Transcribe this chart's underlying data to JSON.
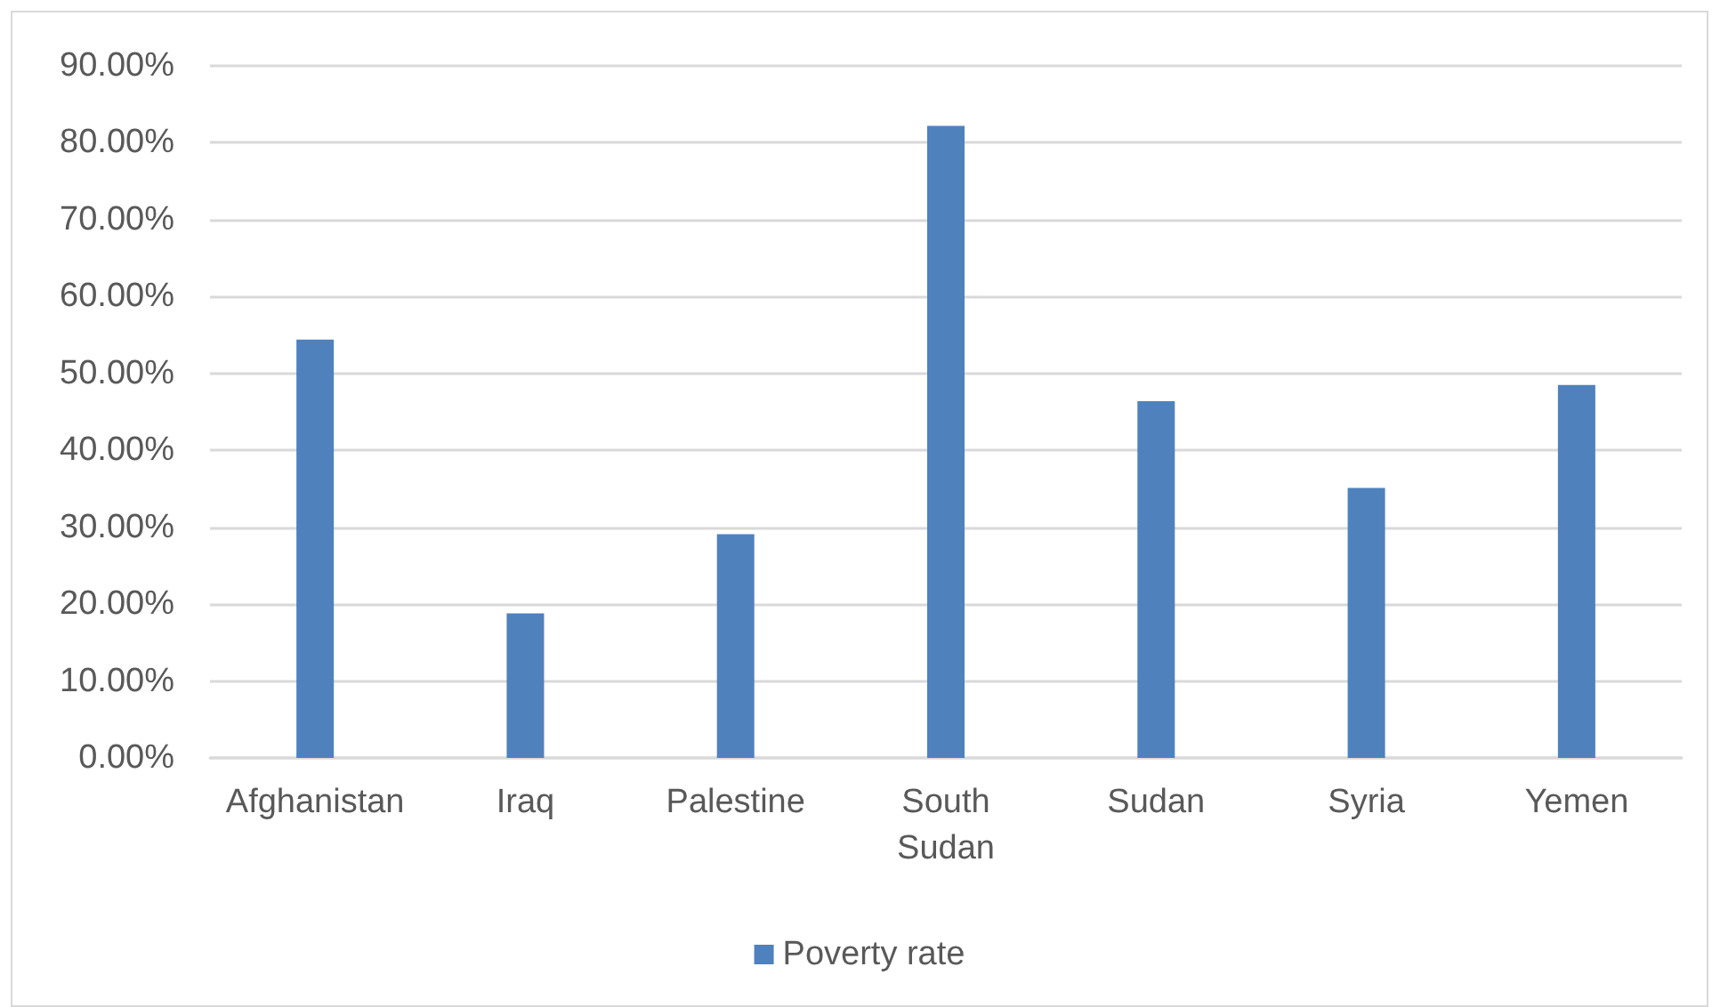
{
  "chart_data": {
    "type": "bar",
    "categories": [
      "Afghanistan",
      "Iraq",
      "Palestine",
      "South\nSudan",
      "Sudan",
      "Syria",
      "Yemen"
    ],
    "series": [
      {
        "name": "Poverty rate",
        "color": "#4f81bd",
        "values": [
          54.4,
          18.8,
          29.1,
          82.2,
          46.4,
          35.1,
          48.5
        ]
      }
    ],
    "ylim": [
      0,
      90
    ],
    "yticks": [
      {
        "value": 0,
        "label": "0.00%"
      },
      {
        "value": 10,
        "label": "10.00%"
      },
      {
        "value": 20,
        "label": "20.00%"
      },
      {
        "value": 30,
        "label": "30.00%"
      },
      {
        "value": 40,
        "label": "40.00%"
      },
      {
        "value": 50,
        "label": "50.00%"
      },
      {
        "value": 60,
        "label": "60.00%"
      },
      {
        "value": 70,
        "label": "70.00%"
      },
      {
        "value": 80,
        "label": "80.00%"
      },
      {
        "value": 90,
        "label": "90.00%"
      }
    ],
    "grid": "y",
    "legend": "bottom"
  }
}
